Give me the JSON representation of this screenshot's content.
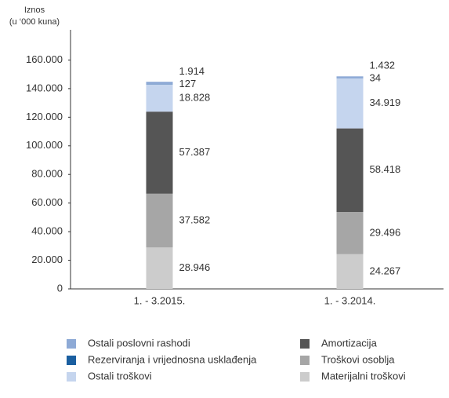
{
  "chart_data": {
    "type": "stacked_bar",
    "y_label": [
      "Iznos",
      "(u ‘000 kuna)"
    ],
    "categories": [
      "1. - 3.2015.",
      "1. - 3.2014."
    ],
    "series": [
      {
        "name": "Materijalni troškovi",
        "color": "#cccccc",
        "values": [
          28946,
          24267
        ],
        "value_labels": [
          "28.946",
          "24.267"
        ]
      },
      {
        "name": "Troškovi osoblja",
        "color": "#a6a6a6",
        "values": [
          37582,
          29496
        ],
        "value_labels": [
          "37.582",
          "29.496"
        ]
      },
      {
        "name": "Amortizacija",
        "color": "#555555",
        "values": [
          57387,
          58418
        ],
        "value_labels": [
          "57.387",
          "58.418"
        ]
      },
      {
        "name": "Ostali troškovi",
        "color": "#c5d5ee",
        "values": [
          18828,
          34919
        ],
        "value_labels": [
          "18.828",
          "34.919"
        ]
      },
      {
        "name": "Rezerviranja i vrijednosna usklađenja",
        "color": "#1a5fa0",
        "values": [
          127,
          34
        ],
        "value_labels": [
          "127",
          "34"
        ]
      },
      {
        "name": "Ostali poslovni rashodi",
        "color": "#8eaad6",
        "values": [
          1914,
          1432
        ],
        "value_labels": [
          "1.914",
          "1.432"
        ]
      }
    ],
    "ylim": [
      0,
      180000
    ],
    "yticks": [
      0,
      {
        "value": 20000,
        "label": "20.000"
      },
      {
        "value": 40000,
        "label": "40.000"
      },
      {
        "value": 60000,
        "label": "60.000"
      },
      {
        "value": 80000,
        "label": "80.000"
      },
      {
        "value": 100000,
        "label": "100.000"
      },
      {
        "value": 120000,
        "label": "120.000"
      },
      {
        "value": 140000,
        "label": "140.000"
      },
      {
        "value": 160000,
        "label": "160.000"
      }
    ]
  }
}
